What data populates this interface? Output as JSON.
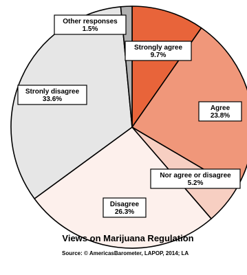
{
  "chart_data": {
    "type": "pie",
    "title": "Views on Marijuana Regulation",
    "source": "Source: © AmericasBarometer, LAPOP, 2014; LA",
    "unit": "%",
    "start_angle_deg": 0,
    "direction": "clockwise",
    "slices": [
      {
        "label": "Strongly agree",
        "value": 9.7,
        "value_label": "9.7%",
        "color": "#e8643a"
      },
      {
        "label": "Agree",
        "value": 23.8,
        "value_label": "23.8%",
        "color": "#f0977a"
      },
      {
        "label": "Nor agree or disagree",
        "value": 5.2,
        "value_label": "5.2%",
        "color": "#f7cfc2"
      },
      {
        "label": "Disagree",
        "value": 26.3,
        "value_label": "26.3%",
        "color": "#fdf0ec"
      },
      {
        "label": "Stronly disagree",
        "value": 33.6,
        "value_label": "33.6%",
        "color": "#e6e6e6"
      },
      {
        "label": "Other responses",
        "value": 1.5,
        "value_label": "1.5%",
        "color": "#b0b0b0"
      }
    ]
  }
}
